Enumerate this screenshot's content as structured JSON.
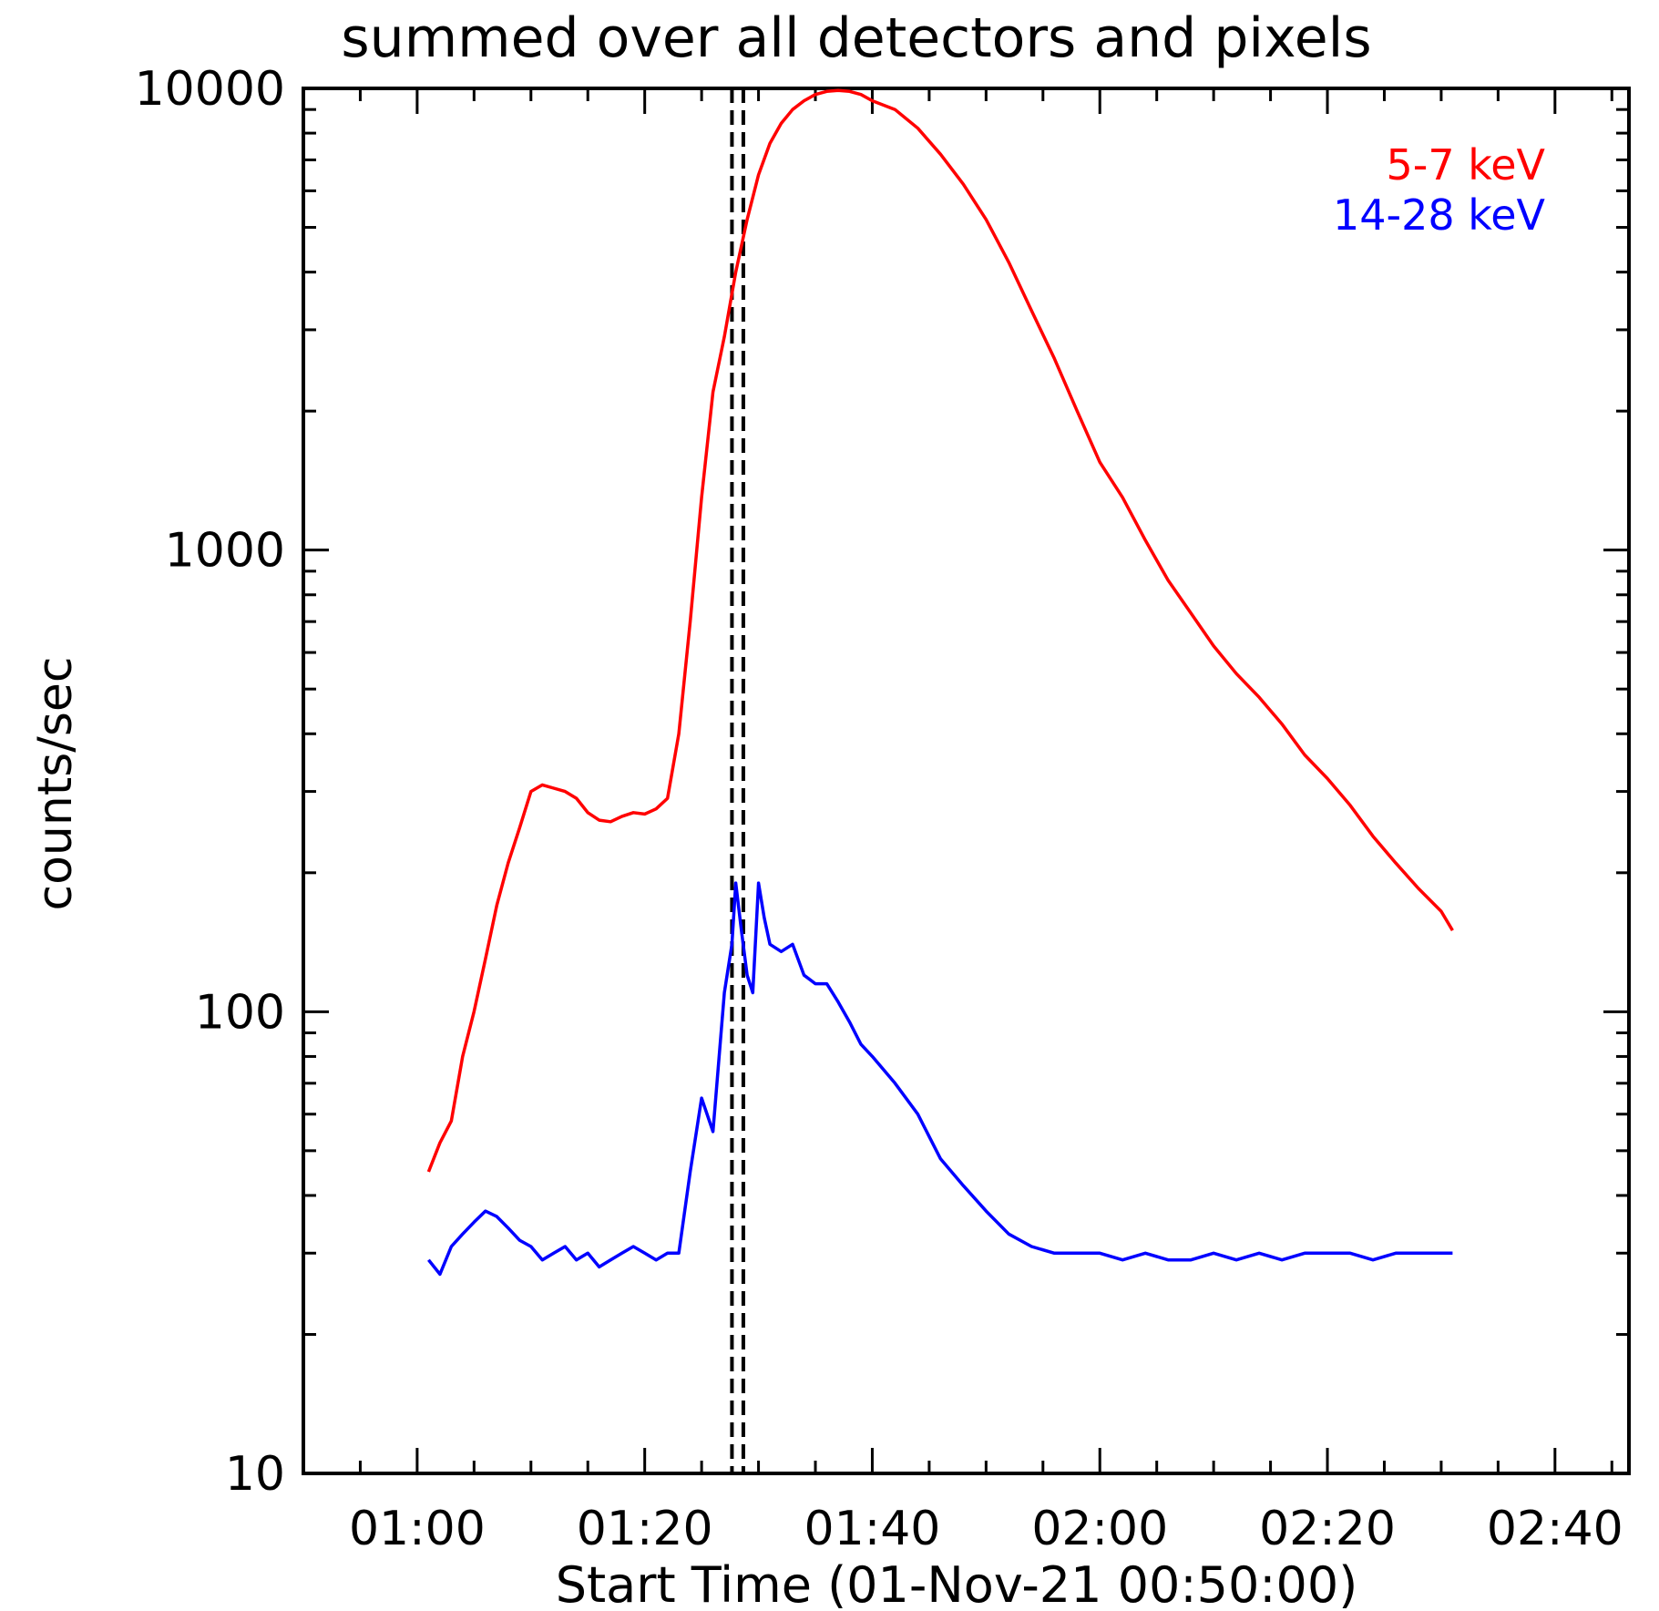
{
  "chart_data": {
    "type": "line",
    "title": "summed over all detectors and pixels",
    "xlabel": "Start Time (01-Nov-21 00:50:00)",
    "ylabel": "counts/sec",
    "yscale": "log",
    "ylim": [
      10,
      10000
    ],
    "xlim_minutes": [
      0,
      116.5
    ],
    "x_tick_labels": [
      "01:00",
      "01:20",
      "01:40",
      "02:00",
      "02:20",
      "02:40"
    ],
    "y_tick_labels": [
      "10",
      "100",
      "1000",
      "10000"
    ],
    "legend_position": "top-right",
    "vertical_lines": [
      "01:27:40",
      "01:28:40"
    ],
    "series": [
      {
        "name": "5-7 keV",
        "color": "#ff0000",
        "x": [
          "01:01",
          "01:02",
          "01:03",
          "01:04",
          "01:05",
          "01:06",
          "01:07",
          "01:08",
          "01:09",
          "01:10",
          "01:11",
          "01:12",
          "01:13",
          "01:14",
          "01:15",
          "01:16",
          "01:17",
          "01:18",
          "01:19",
          "01:20",
          "01:21",
          "01:22",
          "01:23",
          "01:24",
          "01:25",
          "01:26",
          "01:27",
          "01:28",
          "01:29",
          "01:30",
          "01:31",
          "01:32",
          "01:33",
          "01:34",
          "01:35",
          "01:36",
          "01:37",
          "01:38",
          "01:39",
          "01:40",
          "01:42",
          "01:44",
          "01:46",
          "01:48",
          "01:50",
          "01:52",
          "01:54",
          "01:56",
          "01:58",
          "02:00",
          "02:02",
          "02:04",
          "02:06",
          "02:08",
          "02:10",
          "02:12",
          "02:14",
          "02:16",
          "02:18",
          "02:20",
          "02:22",
          "02:24",
          "02:26",
          "02:28",
          "02:30",
          "02:31"
        ],
        "y": [
          45,
          52,
          58,
          80,
          100,
          130,
          170,
          210,
          250,
          300,
          310,
          305,
          300,
          290,
          270,
          260,
          258,
          265,
          270,
          268,
          275,
          290,
          400,
          700,
          1300,
          2200,
          2900,
          4000,
          5200,
          6500,
          7600,
          8400,
          9000,
          9400,
          9700,
          9850,
          9900,
          9850,
          9700,
          9400,
          9000,
          8200,
          7200,
          6200,
          5200,
          4200,
          3300,
          2600,
          2000,
          1550,
          1300,
          1050,
          860,
          730,
          620,
          540,
          480,
          420,
          360,
          320,
          280,
          240,
          210,
          185,
          165,
          150
        ]
      },
      {
        "name": "14-28 keV",
        "color": "#0000ff",
        "x": [
          "01:01",
          "01:02",
          "01:03",
          "01:04",
          "01:05",
          "01:06",
          "01:07",
          "01:08",
          "01:09",
          "01:10",
          "01:11",
          "01:12",
          "01:13",
          "01:14",
          "01:15",
          "01:16",
          "01:17",
          "01:18",
          "01:19",
          "01:20",
          "01:21",
          "01:22",
          "01:23",
          "01:24",
          "01:25",
          "01:26",
          "01:27",
          "01:27:40",
          "01:28",
          "01:28:30",
          "01:29",
          "01:29:30",
          "01:30",
          "01:30:30",
          "01:31",
          "01:32",
          "01:33",
          "01:34",
          "01:35",
          "01:36",
          "01:37",
          "01:38",
          "01:39",
          "01:40",
          "01:42",
          "01:44",
          "01:46",
          "01:48",
          "01:50",
          "01:52",
          "01:54",
          "01:56",
          "01:58",
          "02:00",
          "02:02",
          "02:04",
          "02:06",
          "02:08",
          "02:10",
          "02:12",
          "02:14",
          "02:16",
          "02:18",
          "02:20",
          "02:22",
          "02:24",
          "02:26",
          "02:28",
          "02:30",
          "02:31"
        ],
        "y": [
          29,
          27,
          31,
          33,
          35,
          37,
          36,
          34,
          32,
          31,
          29,
          30,
          31,
          29,
          30,
          28,
          29,
          30,
          31,
          30,
          29,
          30,
          30,
          45,
          65,
          55,
          110,
          140,
          190,
          150,
          120,
          110,
          190,
          160,
          140,
          135,
          140,
          120,
          115,
          115,
          105,
          95,
          85,
          80,
          70,
          60,
          48,
          42,
          37,
          33,
          31,
          30,
          30,
          30,
          29,
          30,
          29,
          29,
          30,
          29,
          30,
          29,
          30,
          30,
          30,
          29,
          30,
          30,
          30,
          30
        ]
      }
    ]
  }
}
